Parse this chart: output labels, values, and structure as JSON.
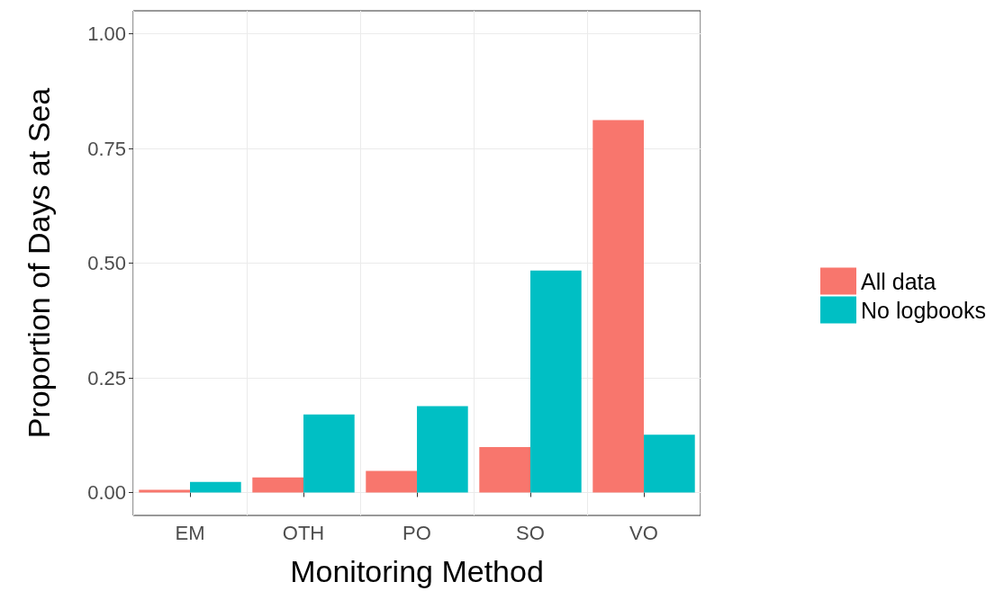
{
  "chart_data": {
    "type": "bar",
    "xlabel": "Monitoring Method",
    "ylabel": "Proportion of Days at Sea",
    "categories": [
      "EM",
      "OTH",
      "PO",
      "SO",
      "VO"
    ],
    "series": [
      {
        "name": "All data",
        "color": "#f8766d",
        "values": [
          0.006,
          0.033,
          0.047,
          0.099,
          0.812
        ]
      },
      {
        "name": "No logbooks",
        "color": "#00bfc4",
        "values": [
          0.023,
          0.17,
          0.188,
          0.484,
          0.126
        ]
      }
    ],
    "ylim": [
      -0.05,
      1.05
    ],
    "yticks": [
      {
        "value": 0,
        "label": "0.00"
      },
      {
        "value": 0.25,
        "label": "0.25"
      },
      {
        "value": 0.5,
        "label": "0.50"
      },
      {
        "value": 0.75,
        "label": "0.75"
      },
      {
        "value": 1,
        "label": "1.00"
      }
    ],
    "grid": true,
    "legend": "right"
  }
}
